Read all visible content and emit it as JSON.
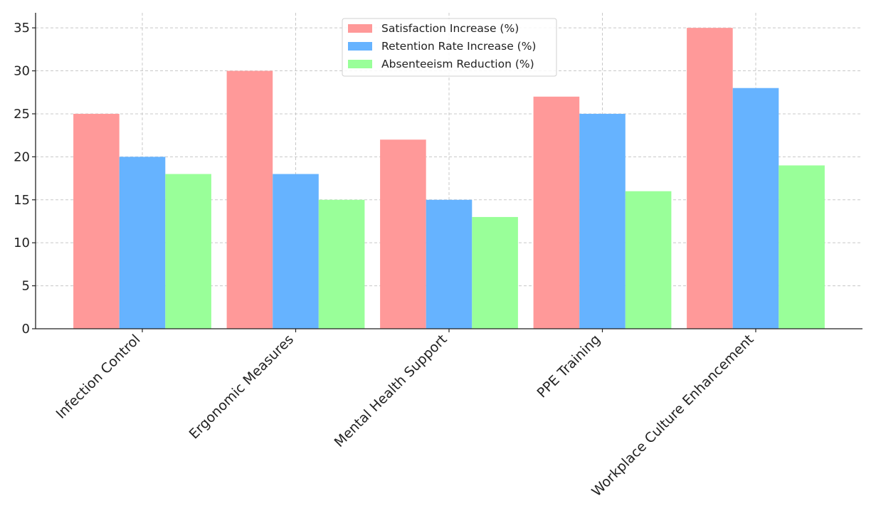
{
  "chart_data": {
    "type": "bar",
    "title": "",
    "xlabel": "",
    "ylabel": "",
    "categories": [
      "Infection Control",
      "Ergonomic Measures",
      "Mental Health Support",
      "PPE Training",
      "Workplace Culture Enhancement"
    ],
    "series": [
      {
        "name": "Satisfaction Increase (%)",
        "color": "#ff9999",
        "values": [
          25,
          30,
          22,
          27,
          35
        ]
      },
      {
        "name": "Retention Rate Increase (%)",
        "color": "#66b3ff",
        "values": [
          20,
          18,
          15,
          25,
          28
        ]
      },
      {
        "name": "Absenteeism Reduction (%)",
        "color": "#99ff99",
        "values": [
          18,
          15,
          13,
          16,
          19
        ]
      }
    ],
    "ylim": [
      0,
      36.75
    ],
    "yticks": [
      0,
      5,
      10,
      15,
      20,
      25,
      30,
      35
    ],
    "grid": true,
    "legend_position": "top-center"
  }
}
